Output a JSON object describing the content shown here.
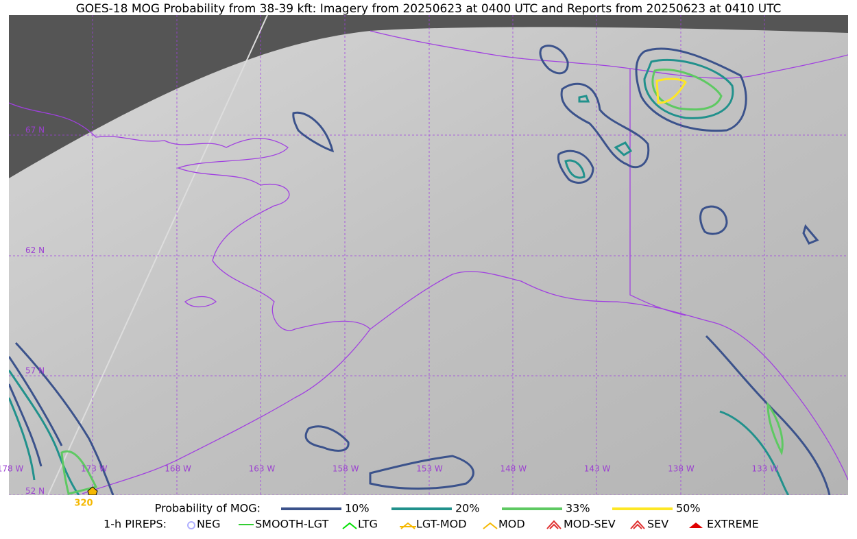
{
  "title": "GOES-18 MOG Probability from 38-39 kft: Imagery from 20250623 at 0400 UTC and Reports from 20250623 at 0410 UTC",
  "map": {
    "lat_labels": [
      "67 N",
      "62 N",
      "57 N",
      "52 N"
    ],
    "lon_labels": [
      "178 W",
      "173 W",
      "168 W",
      "163 W",
      "158 W",
      "153 W",
      "148 W",
      "143 W",
      "138 W",
      "133 W"
    ],
    "report_label": "320"
  },
  "legend": {
    "probability_title": "Probability of MOG:",
    "probability_levels": [
      {
        "label": "10%",
        "color": "#3b528b"
      },
      {
        "label": "20%",
        "color": "#21918c"
      },
      {
        "label": "33%",
        "color": "#5ec962"
      },
      {
        "label": "50%",
        "color": "#fde725"
      }
    ],
    "pireps_title": "1-h PIREPS:",
    "pireps": [
      {
        "label": "NEG",
        "color": "#b0b0ff"
      },
      {
        "label": "SMOOTH-LGT",
        "color": "#32cd32"
      },
      {
        "label": "LTG",
        "color": "#00e000"
      },
      {
        "label": "LGT-MOD",
        "color": "#f5b800"
      },
      {
        "label": "MOD",
        "color": "#f5b800"
      },
      {
        "label": "MOD-SEV",
        "color": "#e03030"
      },
      {
        "label": "SEV",
        "color": "#e03030"
      },
      {
        "label": "EXTREME",
        "color": "#e00000"
      }
    ]
  }
}
